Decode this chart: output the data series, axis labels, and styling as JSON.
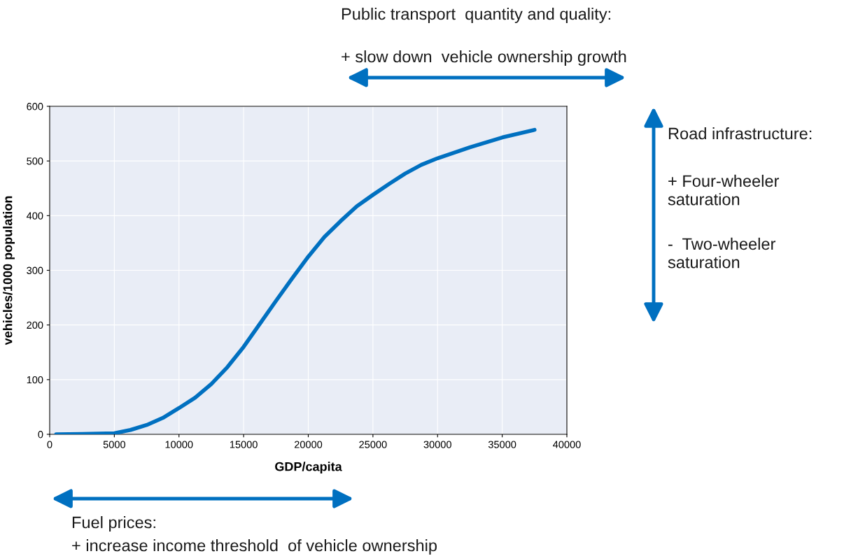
{
  "chart_data": {
    "type": "line",
    "xlabel": "GDP/capita",
    "ylabel": "vehicles/1000 population",
    "x": [
      500,
      2500,
      5000,
      6250,
      7500,
      8750,
      10000,
      11250,
      12500,
      13750,
      15000,
      16250,
      17500,
      18750,
      20000,
      21250,
      22500,
      23750,
      25000,
      26250,
      27500,
      28750,
      30000,
      32500,
      35000,
      37500
    ],
    "series": [
      {
        "color": "#0070c0",
        "values": [
          0,
          0.5,
          2,
          8,
          17,
          30,
          48,
          67,
          92,
          123,
          160,
          202,
          244,
          285,
          325,
          361,
          390,
          417,
          438,
          458,
          477,
          493,
          505,
          525,
          543,
          557
        ]
      }
    ],
    "xlim": [
      0,
      40000
    ],
    "xticks": [
      0,
      5000,
      10000,
      15000,
      20000,
      25000,
      30000,
      35000,
      40000
    ],
    "ylim": [
      0,
      600
    ],
    "yticks": [
      0,
      100,
      200,
      300,
      400,
      500,
      600
    ],
    "grid": true,
    "marker": "none",
    "line_style": "solid",
    "annotations": [
      "Public transport  quantity and quality:",
      "+ slow down  vehicle ownership growth",
      "Road infrastructure:",
      "+ Four-wheeler\nsaturation",
      "-  Two-wheeler\nsaturation",
      "Fuel prices:",
      "+ increase income threshold  of vehicle ownership"
    ]
  }
}
